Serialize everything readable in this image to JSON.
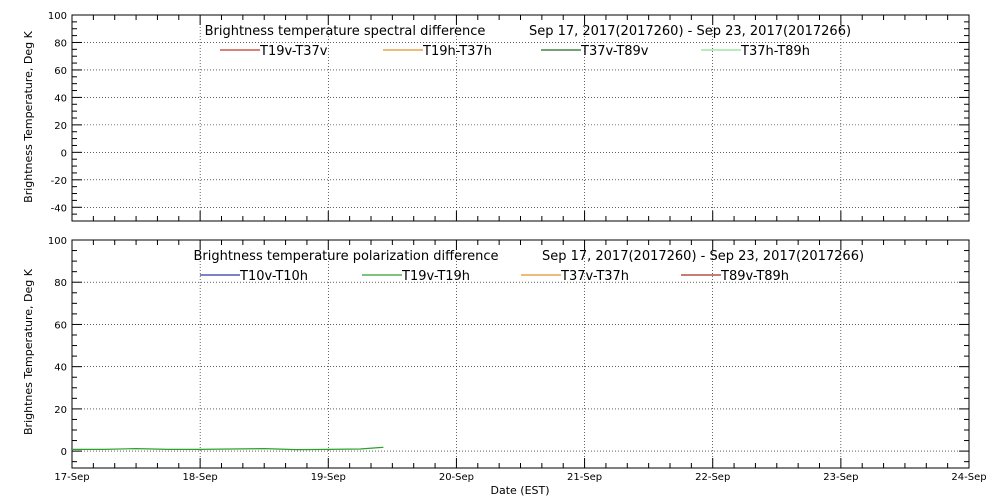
{
  "x_axis": {
    "label": "Date (EST)",
    "ticks": [
      "17-Sep",
      "18-Sep",
      "19-Sep",
      "20-Sep",
      "21-Sep",
      "22-Sep",
      "23-Sep",
      "24-Sep"
    ]
  },
  "chart_data": [
    {
      "type": "line",
      "title": "Brightness temperature spectral difference",
      "subtitle": "Sep 17, 2017(2017260) - Sep 23, 2017(2017266)",
      "ylabel": "Brightness Temperature, Deg K",
      "xlabel": "",
      "xlim": [
        0,
        7
      ],
      "ylim": [
        -50,
        100
      ],
      "yticks": [
        -40,
        -20,
        0,
        20,
        40,
        60,
        80,
        100
      ],
      "grid": true,
      "legend_position": "top",
      "series": [
        {
          "name": "T19v-T37v",
          "color": "#c0392b",
          "x": [],
          "y": []
        },
        {
          "name": "T19h-T37h",
          "color": "#e8902a",
          "x": [],
          "y": []
        },
        {
          "name": "T37v-T89v",
          "color": "#1f6e1f",
          "x": [],
          "y": []
        },
        {
          "name": "T37h-T89h",
          "color": "#8ee08e",
          "x": [],
          "y": []
        }
      ]
    },
    {
      "type": "line",
      "title": "Brightness temperature polarization difference",
      "subtitle": "Sep 17, 2017(2017260) - Sep 23, 2017(2017266)",
      "ylabel": "Brightnes Temperature, Deg K",
      "xlabel": "Date (EST)",
      "xlim": [
        0,
        7
      ],
      "ylim": [
        -8,
        100
      ],
      "yticks": [
        0,
        20,
        40,
        60,
        80,
        100
      ],
      "grid": true,
      "legend_position": "top",
      "series": [
        {
          "name": "T10v-T10h",
          "color": "#2b3a9e",
          "x": [],
          "y": []
        },
        {
          "name": "T19v-T19h",
          "color": "#2ca02c",
          "x": [
            0,
            0.25,
            0.5,
            0.75,
            1.0,
            1.25,
            1.5,
            1.75,
            2.0,
            2.25,
            2.43
          ],
          "y": [
            0.8,
            0.8,
            1.2,
            0.8,
            0.8,
            1.0,
            1.2,
            0.7,
            0.8,
            1.0,
            1.8
          ]
        },
        {
          "name": "T37v-T37h",
          "color": "#e8902a",
          "x": [],
          "y": []
        },
        {
          "name": "T89v-T89h",
          "color": "#a03020",
          "x": [],
          "y": []
        }
      ]
    }
  ]
}
